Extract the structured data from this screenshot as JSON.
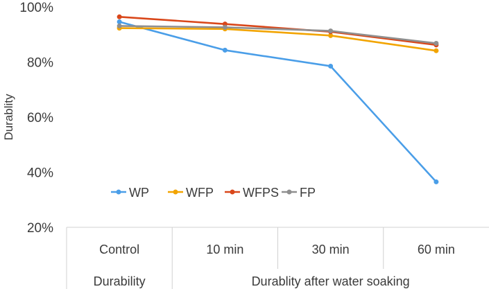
{
  "chart_data": {
    "type": "line",
    "ylabel": "Durablity",
    "ylim": [
      20,
      100
    ],
    "yticks": [
      "20%",
      "40%",
      "60%",
      "80%",
      "100%"
    ],
    "categories": [
      "Control",
      "10 min",
      "30 min",
      "60 min"
    ],
    "groups": [
      {
        "label": "Durability",
        "span": [
          "Control"
        ]
      },
      {
        "label": "Durablity after water soaking",
        "span": [
          "10 min",
          "30 min",
          "60 min"
        ]
      }
    ],
    "grid": false,
    "legend_position": "inside-lower-left",
    "series": [
      {
        "name": "WP",
        "color": "#4a9ee8",
        "values": [
          94.6,
          84.3,
          78.5,
          36.5
        ]
      },
      {
        "name": "WFP",
        "color": "#f2a400",
        "values": [
          92.3,
          92.0,
          89.6,
          84.1
        ]
      },
      {
        "name": "WFPS",
        "color": "#d9471a",
        "values": [
          96.4,
          93.8,
          91.0,
          86.2
        ]
      },
      {
        "name": "FP",
        "color": "#8f8f8f",
        "values": [
          93.1,
          92.6,
          91.3,
          86.8
        ]
      }
    ]
  }
}
